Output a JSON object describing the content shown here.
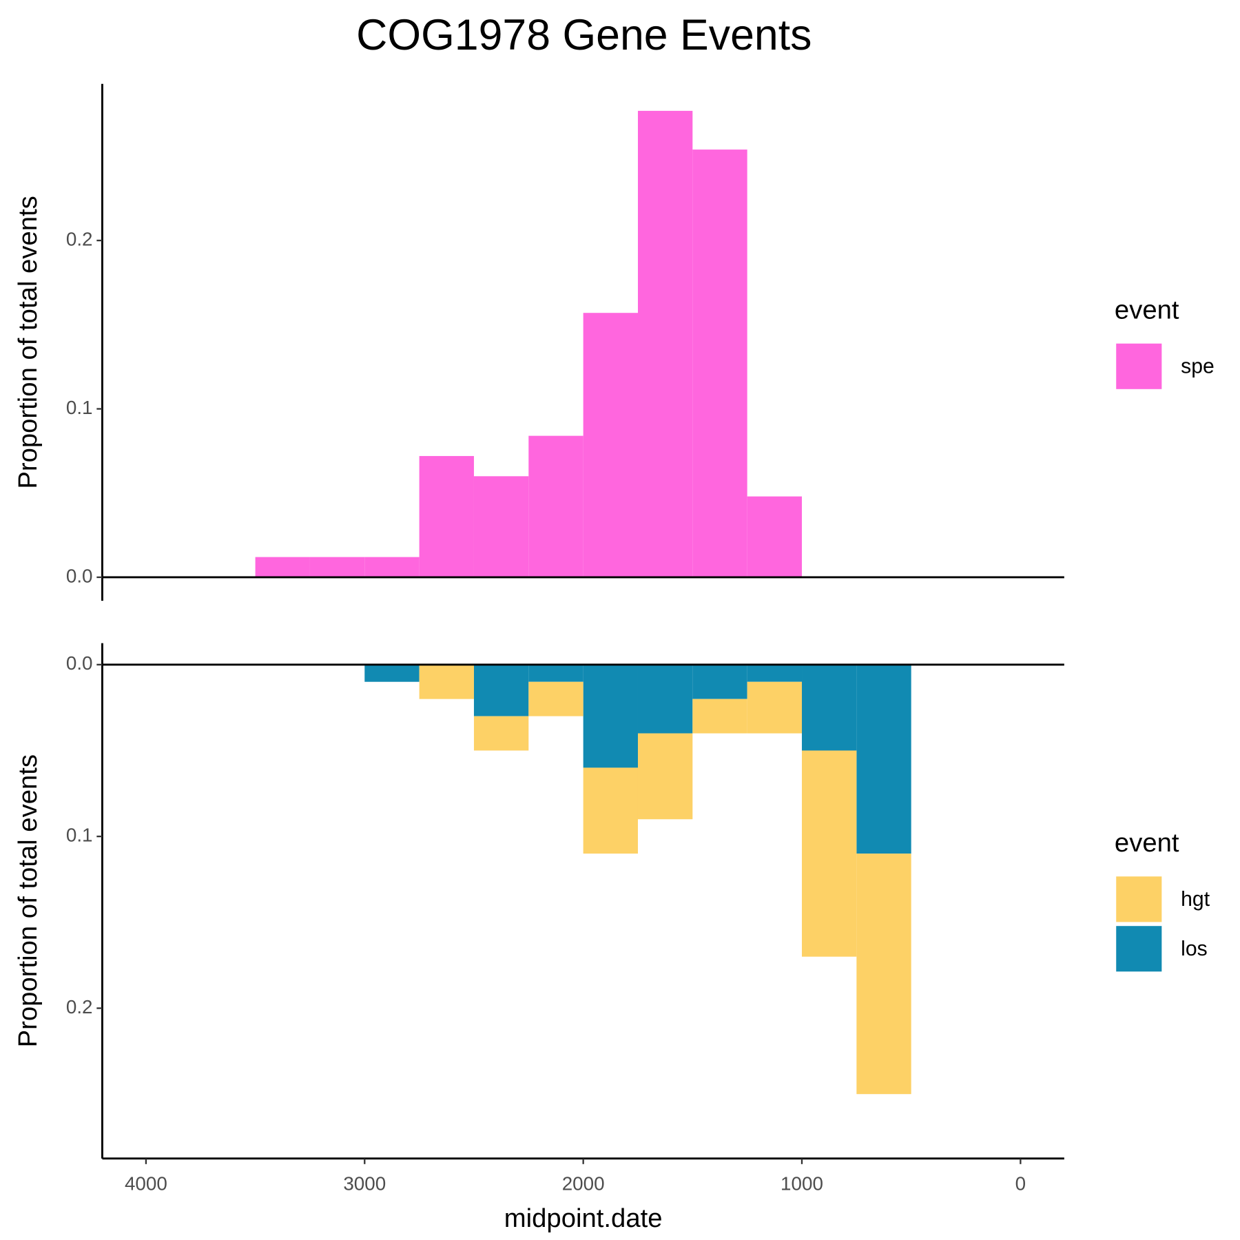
{
  "title": "COG1978 Gene Events",
  "chart_data": [
    {
      "type": "histogram",
      "ylabel": "Proportion of total events",
      "legend_title": "event",
      "bins": [
        3500,
        3250,
        3000,
        2750,
        2500,
        2250,
        2000,
        1750,
        1500,
        1250,
        1000
      ],
      "series": [
        {
          "name": "spe",
          "color": "#FF66DE",
          "values": [
            0.012,
            0.012,
            0.012,
            0.072,
            0.06,
            0.084,
            0.157,
            0.277,
            0.254,
            0.048
          ]
        }
      ],
      "xlim": [
        4200,
        -200
      ],
      "ylim": [
        -0.014,
        0.293
      ],
      "yticks": [
        {
          "value": 0,
          "label": "0.0"
        },
        0.1,
        0.2
      ],
      "grid": false
    },
    {
      "type": "histogram",
      "ylabel": "Proportion of total events",
      "xlabel": "midpoint.date",
      "legend_title": "event",
      "stacked": true,
      "y_reversed": true,
      "bins": [
        3000,
        2750,
        2500,
        2250,
        2000,
        1750,
        1500,
        1250,
        1000,
        750,
        500
      ],
      "series": [
        {
          "name": "hgt",
          "color": "#FDD166",
          "values": [
            0,
            0.02,
            0.02,
            0.02,
            0.05,
            0.05,
            0.02,
            0.03,
            0.12,
            0.14
          ]
        },
        {
          "name": "los",
          "color": "#118AB2",
          "values": [
            0.01,
            0,
            0.03,
            0.01,
            0.06,
            0.04,
            0.02,
            0.01,
            0.05,
            0.11
          ]
        }
      ],
      "xlim": [
        4200,
        -200
      ],
      "xticks": [
        4000,
        3000,
        2000,
        1000,
        0
      ],
      "ylim": [
        -0.0125,
        0.2875
      ],
      "yticks": [
        {
          "value": 0,
          "label": "0.0"
        },
        0.1,
        0.2
      ],
      "grid": false
    }
  ]
}
